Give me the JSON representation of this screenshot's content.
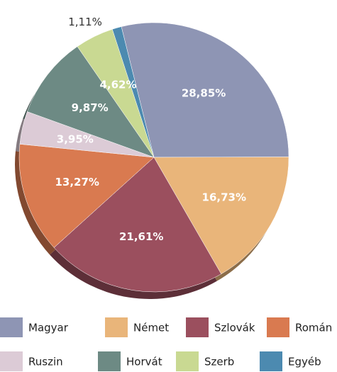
{
  "chart_data": {
    "type": "pie",
    "categories": [
      "Magyar",
      "Német",
      "Szlovák",
      "Román",
      "Ruszin",
      "Horvát",
      "Szerb",
      "Egyéb"
    ],
    "values": [
      28.85,
      16.73,
      21.61,
      13.27,
      3.95,
      9.87,
      4.62,
      1.11
    ],
    "value_labels": [
      "28,85%",
      "16,73%",
      "21,61%",
      "13,27%",
      "3,95%",
      "9,87%",
      "4,62%",
      "1,11%"
    ],
    "colors": [
      "#8e95b4",
      "#e9b57a",
      "#9b4f5e",
      "#d97a50",
      "#dccbd6",
      "#6d8a84",
      "#c9d992",
      "#4c8ab0"
    ],
    "legend": "bottom"
  }
}
